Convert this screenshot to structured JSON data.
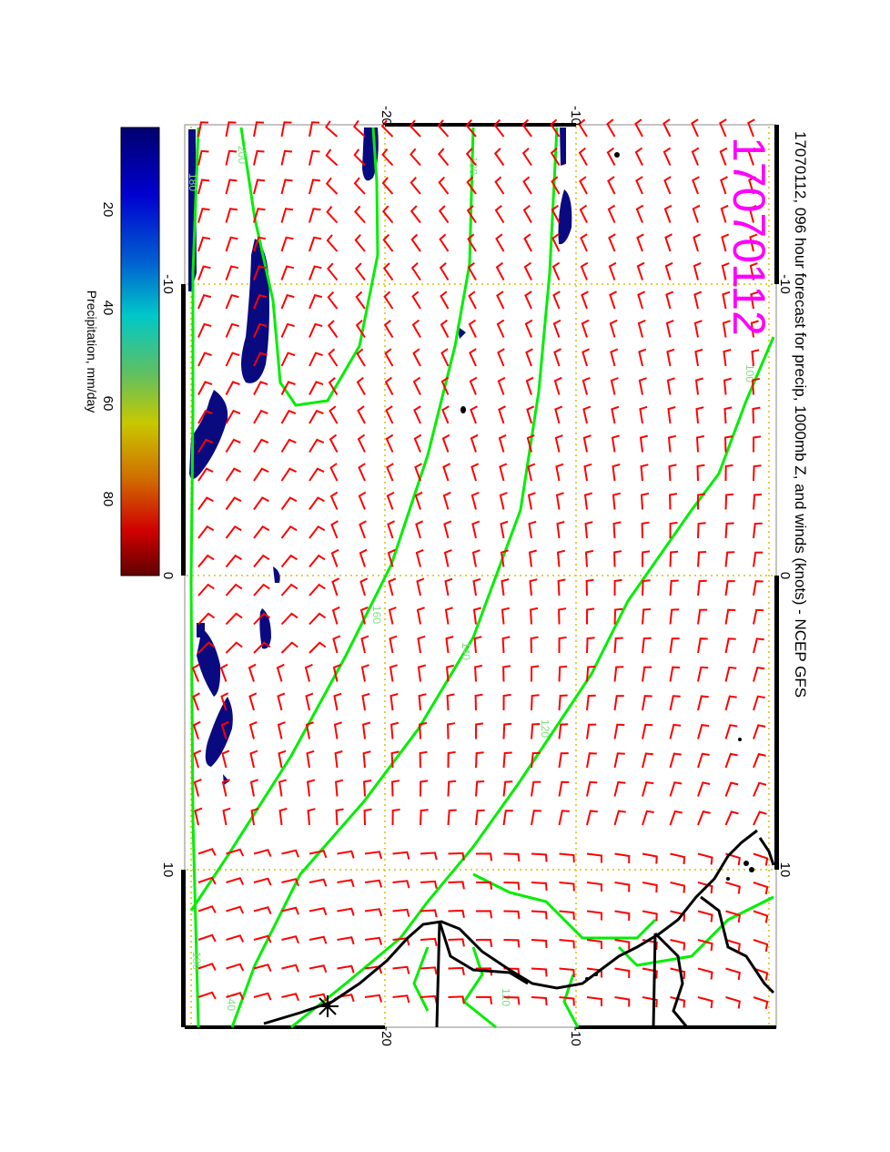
{
  "title": "17070112, 096 hour forecast for precip, 1000mb Z, and winds (knots) - NCEP GFS",
  "date_stamp": "17070112",
  "map": {
    "lat_ticks": [
      "-20",
      "-10"
    ],
    "lon_ticks": [
      "-10",
      "0",
      "10"
    ],
    "contour_labels": [
      "200",
      "180",
      "180",
      "160",
      "140",
      "120",
      "100",
      "120",
      "180",
      "140"
    ]
  },
  "colorbar": {
    "label": "Precipitation, mm/day",
    "ticks": [
      "20",
      "40",
      "60",
      "80"
    ],
    "colors": [
      "#00006e",
      "#0000d0",
      "#0060d0",
      "#00c8c8",
      "#60c060",
      "#c8c800",
      "#d07000",
      "#d00000",
      "#600000"
    ]
  },
  "colors": {
    "wind_barb": "#ff0000",
    "contour": "#00ee00",
    "precip": "#0a0a80",
    "grid": "#d4c400",
    "date_stamp": "#ff00ff"
  }
}
